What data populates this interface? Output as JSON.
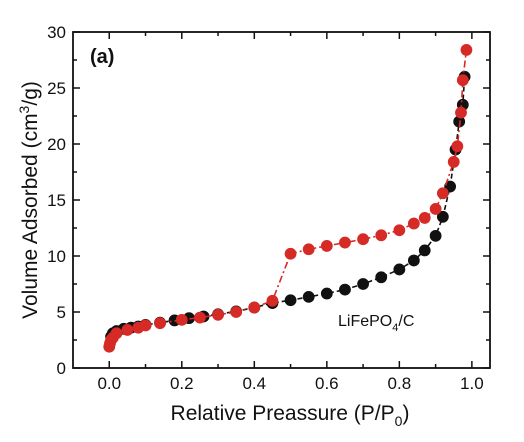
{
  "chart_data": {
    "type": "scatter",
    "panel_label": "(a)",
    "xlabel_main": "Relative Preassure (P/P",
    "xlabel_sub": "0",
    "xlabel_end": ")",
    "ylabel_main": "Volume Adsorbed (cm",
    "ylabel_sup": "3",
    "ylabel_end": "/g)",
    "annotation_main": "LiFePO",
    "annotation_sub": "4",
    "annotation_end": "/C",
    "xlim": [
      -0.1,
      1.05
    ],
    "ylim": [
      0,
      30
    ],
    "x_ticks": [
      0.0,
      0.2,
      0.4,
      0.6,
      0.8,
      1.0
    ],
    "x_tick_labels": [
      "0.0",
      "0.2",
      "0.4",
      "0.6",
      "0.8",
      "1.0"
    ],
    "y_ticks": [
      0,
      5,
      10,
      15,
      20,
      25,
      30
    ],
    "y_tick_labels": [
      "0",
      "5",
      "10",
      "15",
      "20",
      "25",
      "30"
    ],
    "series": [
      {
        "color": "#111111",
        "line": "dash",
        "x": [
          0.005,
          0.01,
          0.02,
          0.04,
          0.06,
          0.08,
          0.1,
          0.14,
          0.18,
          0.22,
          0.26,
          0.3,
          0.35,
          0.4,
          0.45,
          0.5,
          0.55,
          0.6,
          0.65,
          0.7,
          0.75,
          0.8,
          0.84,
          0.87,
          0.9,
          0.92,
          0.94,
          0.955,
          0.965,
          0.975,
          0.98
        ],
        "y": [
          2.8,
          3.1,
          3.3,
          3.5,
          3.6,
          3.7,
          3.85,
          4.05,
          4.25,
          4.45,
          4.6,
          4.8,
          5.05,
          5.4,
          5.8,
          6.05,
          6.35,
          6.65,
          7.0,
          7.5,
          8.1,
          8.8,
          9.6,
          10.5,
          11.8,
          13.5,
          16.2,
          19.5,
          22.0,
          23.5,
          26.0
        ]
      },
      {
        "color": "#d62a27",
        "line": "dash-dot",
        "x": [
          0.0,
          0.002,
          0.005,
          0.01,
          0.02,
          0.05,
          0.08,
          0.1,
          0.14,
          0.2,
          0.25,
          0.3,
          0.35,
          0.4,
          0.45,
          0.5,
          0.55,
          0.6,
          0.65,
          0.7,
          0.75,
          0.8,
          0.84,
          0.87,
          0.9,
          0.92,
          0.95,
          0.96,
          0.97,
          0.975,
          0.985
        ],
        "y": [
          1.9,
          2.2,
          2.5,
          2.7,
          3.1,
          3.4,
          3.6,
          3.8,
          4.0,
          4.3,
          4.5,
          4.75,
          5.0,
          5.4,
          6.0,
          10.2,
          10.6,
          10.9,
          11.2,
          11.5,
          11.85,
          12.3,
          12.9,
          13.4,
          14.2,
          15.6,
          18.4,
          19.8,
          22.8,
          25.7,
          28.4
        ]
      }
    ]
  }
}
